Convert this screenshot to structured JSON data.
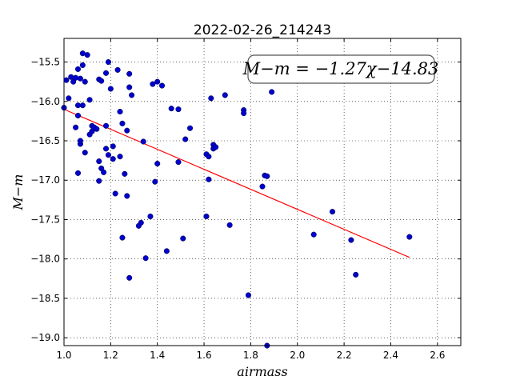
{
  "chart_data": {
    "type": "scatter",
    "title": "2022-02-26_214243",
    "xlabel": "airmass",
    "ylabel": "M−m",
    "xlim": [
      1.0,
      2.7
    ],
    "ylim": [
      -19.1,
      -15.2
    ],
    "xticks": [
      1.0,
      1.2,
      1.4,
      1.6,
      1.8,
      2.0,
      2.2,
      2.4,
      2.6
    ],
    "xtick_labels": [
      "1.0",
      "1.2",
      "1.4",
      "1.6",
      "1.8",
      "2.0",
      "2.2",
      "2.4",
      "2.6"
    ],
    "yticks": [
      -19.0,
      -18.5,
      -18.0,
      -17.5,
      -17.0,
      -16.5,
      -16.0,
      -15.5
    ],
    "ytick_labels": [
      "−19.0",
      "−18.5",
      "−18.0",
      "−17.5",
      "−17.0",
      "−16.5",
      "−16.0",
      "−15.5"
    ],
    "grid": true,
    "annotation": "M−m = −1.27χ−14.83",
    "fit": {
      "slope": -1.27,
      "intercept": -14.83,
      "x_range": [
        1.0,
        2.48
      ],
      "color": "#ff0000"
    },
    "point_color": "#0000cc",
    "points": [
      [
        1.0,
        -16.08
      ],
      [
        1.01,
        -15.73
      ],
      [
        1.02,
        -15.96
      ],
      [
        1.03,
        -15.69
      ],
      [
        1.04,
        -15.75
      ],
      [
        1.05,
        -15.7
      ],
      [
        1.05,
        -16.33
      ],
      [
        1.06,
        -16.05
      ],
      [
        1.06,
        -16.91
      ],
      [
        1.06,
        -15.59
      ],
      [
        1.06,
        -16.18
      ],
      [
        1.07,
        -16.54
      ],
      [
        1.07,
        -16.5
      ],
      [
        1.07,
        -15.71
      ],
      [
        1.08,
        -15.54
      ],
      [
        1.08,
        -16.05
      ],
      [
        1.08,
        -15.39
      ],
      [
        1.09,
        -16.65
      ],
      [
        1.09,
        -15.75
      ],
      [
        1.1,
        -15.41
      ],
      [
        1.11,
        -15.98
      ],
      [
        1.11,
        -16.42
      ],
      [
        1.12,
        -16.38
      ],
      [
        1.12,
        -16.31
      ],
      [
        1.13,
        -16.33
      ],
      [
        1.14,
        -16.35
      ],
      [
        1.15,
        -15.72
      ],
      [
        1.15,
        -16.76
      ],
      [
        1.15,
        -17.01
      ],
      [
        1.16,
        -15.74
      ],
      [
        1.16,
        -16.85
      ],
      [
        1.17,
        -16.9
      ],
      [
        1.18,
        -16.6
      ],
      [
        1.18,
        -16.31
      ],
      [
        1.18,
        -15.64
      ],
      [
        1.19,
        -15.5
      ],
      [
        1.19,
        -16.68
      ],
      [
        1.2,
        -15.84
      ],
      [
        1.21,
        -16.57
      ],
      [
        1.21,
        -16.73
      ],
      [
        1.22,
        -17.17
      ],
      [
        1.23,
        -15.6
      ],
      [
        1.24,
        -16.7
      ],
      [
        1.24,
        -16.13
      ],
      [
        1.25,
        -16.28
      ],
      [
        1.25,
        -17.73
      ],
      [
        1.26,
        -16.92
      ],
      [
        1.27,
        -16.37
      ],
      [
        1.27,
        -17.2
      ],
      [
        1.28,
        -15.65
      ],
      [
        1.28,
        -15.82
      ],
      [
        1.28,
        -18.24
      ],
      [
        1.29,
        -15.92
      ],
      [
        1.32,
        -17.58
      ],
      [
        1.33,
        -17.54
      ],
      [
        1.34,
        -16.51
      ],
      [
        1.35,
        -17.99
      ],
      [
        1.37,
        -17.46
      ],
      [
        1.38,
        -15.78
      ],
      [
        1.39,
        -17.02
      ],
      [
        1.4,
        -16.79
      ],
      [
        1.4,
        -15.75
      ],
      [
        1.42,
        -15.8
      ],
      [
        1.44,
        -17.9
      ],
      [
        1.46,
        -16.09
      ],
      [
        1.49,
        -16.1
      ],
      [
        1.49,
        -16.77
      ],
      [
        1.51,
        -17.74
      ],
      [
        1.52,
        -16.48
      ],
      [
        1.54,
        -16.34
      ],
      [
        1.61,
        -17.46
      ],
      [
        1.61,
        -16.67
      ],
      [
        1.62,
        -16.7
      ],
      [
        1.62,
        -16.99
      ],
      [
        1.63,
        -15.96
      ],
      [
        1.64,
        -16.55
      ],
      [
        1.64,
        -16.6
      ],
      [
        1.65,
        -16.58
      ],
      [
        1.69,
        -15.92
      ],
      [
        1.71,
        -17.57
      ],
      [
        1.77,
        -16.11
      ],
      [
        1.77,
        -16.15
      ],
      [
        1.79,
        -18.46
      ],
      [
        1.85,
        -17.08
      ],
      [
        1.86,
        -16.94
      ],
      [
        1.87,
        -16.95
      ],
      [
        1.87,
        -19.1
      ],
      [
        1.89,
        -15.88
      ],
      [
        2.07,
        -17.69
      ],
      [
        2.15,
        -17.4
      ],
      [
        2.23,
        -17.76
      ],
      [
        2.25,
        -18.2
      ],
      [
        2.48,
        -17.72
      ]
    ]
  }
}
